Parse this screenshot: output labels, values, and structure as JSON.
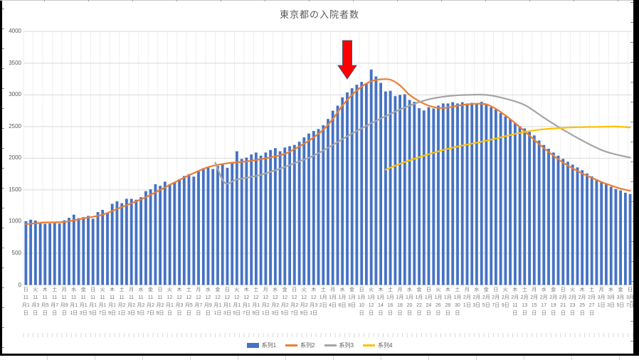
{
  "chart_data": {
    "type": "combo: daily bar series + 3 smoothed line series",
    "title": "東京都の入院者数",
    "ylabel": "",
    "xlabel": "",
    "ylim": [
      0,
      4000
    ],
    "y_ticks": [
      0,
      500,
      1000,
      1500,
      2000,
      2500,
      3000,
      3500,
      4000
    ],
    "x_range": "daily categories from 11月1日(日) to 3月7日(日), tick labels every 2 days",
    "grid": "horizontal every 500, light vertical every 2 categories",
    "legend_position": "bottom center",
    "x_tick_labels": [
      {
        "w": "日",
        "d": "11月1日"
      },
      {
        "w": "火",
        "d": "11月3日"
      },
      {
        "w": "木",
        "d": "11月5日"
      },
      {
        "w": "土",
        "d": "11月7日"
      },
      {
        "w": "月",
        "d": "11月9日"
      },
      {
        "w": "水",
        "d": "11月11日"
      },
      {
        "w": "金",
        "d": "11月13日"
      },
      {
        "w": "日",
        "d": "11月15日"
      },
      {
        "w": "火",
        "d": "11月17日"
      },
      {
        "w": "木",
        "d": "11月19日"
      },
      {
        "w": "土",
        "d": "11月21日"
      },
      {
        "w": "月",
        "d": "11月23日"
      },
      {
        "w": "水",
        "d": "11月25日"
      },
      {
        "w": "金",
        "d": "11月27日"
      },
      {
        "w": "日",
        "d": "11月29日"
      },
      {
        "w": "火",
        "d": "12月1日"
      },
      {
        "w": "木",
        "d": "12月3日"
      },
      {
        "w": "土",
        "d": "12月5日"
      },
      {
        "w": "月",
        "d": "12月7日"
      },
      {
        "w": "水",
        "d": "12月9日"
      },
      {
        "w": "金",
        "d": "12月11日"
      },
      {
        "w": "日",
        "d": "12月13日"
      },
      {
        "w": "火",
        "d": "12月15日"
      },
      {
        "w": "木",
        "d": "12月17日"
      },
      {
        "w": "土",
        "d": "12月19日"
      },
      {
        "w": "月",
        "d": "12月21日"
      },
      {
        "w": "水",
        "d": "12月23日"
      },
      {
        "w": "金",
        "d": "12月25日"
      },
      {
        "w": "日",
        "d": "12月27日"
      },
      {
        "w": "火",
        "d": "12月29日"
      },
      {
        "w": "木",
        "d": "12月31日"
      },
      {
        "w": "土",
        "d": "1月2日"
      },
      {
        "w": "月",
        "d": "1月4日"
      },
      {
        "w": "水",
        "d": "1月6日"
      },
      {
        "w": "金",
        "d": "1月8日"
      },
      {
        "w": "日",
        "d": "1月10日"
      },
      {
        "w": "火",
        "d": "1月12日"
      },
      {
        "w": "木",
        "d": "1月14日"
      },
      {
        "w": "土",
        "d": "1月16日"
      },
      {
        "w": "月",
        "d": "1月18日"
      },
      {
        "w": "水",
        "d": "1月20日"
      },
      {
        "w": "金",
        "d": "1月22日"
      },
      {
        "w": "日",
        "d": "1月24日"
      },
      {
        "w": "火",
        "d": "1月26日"
      },
      {
        "w": "木",
        "d": "1月28日"
      },
      {
        "w": "土",
        "d": "1月30日"
      },
      {
        "w": "月",
        "d": "2月1日"
      },
      {
        "w": "水",
        "d": "2月3日"
      },
      {
        "w": "金",
        "d": "2月5日"
      },
      {
        "w": "日",
        "d": "2月7日"
      },
      {
        "w": "火",
        "d": "2月9日"
      },
      {
        "w": "木",
        "d": "2月11日"
      },
      {
        "w": "土",
        "d": "2月13日"
      },
      {
        "w": "月",
        "d": "2月15日"
      },
      {
        "w": "水",
        "d": "2月17日"
      },
      {
        "w": "金",
        "d": "2月19日"
      },
      {
        "w": "日",
        "d": "2月21日"
      },
      {
        "w": "火",
        "d": "2月23日"
      },
      {
        "w": "木",
        "d": "2月25日"
      },
      {
        "w": "土",
        "d": "2月27日"
      },
      {
        "w": "月",
        "d": "3月1日"
      },
      {
        "w": "水",
        "d": "3月3日"
      },
      {
        "w": "金",
        "d": "3月5日"
      },
      {
        "w": "日",
        "d": "3月7日"
      }
    ],
    "series": [
      {
        "name": "系列1",
        "type": "bar",
        "color": "#4472C4",
        "note": "daily values (estimated from pixels), 11月1日-3月7日",
        "values": [
          1005,
          1030,
          1015,
          975,
          965,
          970,
          975,
          970,
          1020,
          1060,
          1110,
          1055,
          1070,
          1090,
          1045,
          1150,
          1185,
          1135,
          1280,
          1320,
          1290,
          1360,
          1360,
          1345,
          1385,
          1480,
          1510,
          1590,
          1565,
          1630,
          1590,
          1620,
          1670,
          1720,
          1750,
          1710,
          1790,
          1840,
          1860,
          1830,
          1880,
          1900,
          1850,
          1930,
          2110,
          1990,
          2010,
          2060,
          2090,
          2040,
          2090,
          2130,
          2160,
          2110,
          2170,
          2190,
          2210,
          2260,
          2330,
          2390,
          2430,
          2460,
          2520,
          2620,
          2750,
          2830,
          2960,
          3040,
          3105,
          3160,
          3205,
          3185,
          3400,
          3290,
          3190,
          3055,
          3065,
          2980,
          3000,
          3010,
          2920,
          2890,
          2790,
          2755,
          2805,
          2785,
          2830,
          2865,
          2865,
          2885,
          2865,
          2885,
          2865,
          2875,
          2860,
          2890,
          2860,
          2805,
          2770,
          2715,
          2660,
          2615,
          2560,
          2505,
          2470,
          2415,
          2360,
          2280,
          2210,
          2150,
          2090,
          2040,
          1990,
          1945,
          1900,
          1855,
          1810,
          1760,
          1715,
          1670,
          1630,
          1590,
          1550,
          1515,
          1490,
          1455,
          1435
        ]
      },
      {
        "name": "系列2",
        "type": "line",
        "color": "#ED7D31",
        "points": [
          [
            0,
            960
          ],
          [
            4,
            985
          ],
          [
            8,
            995
          ],
          [
            12,
            1050
          ],
          [
            16,
            1110
          ],
          [
            20,
            1230
          ],
          [
            24,
            1350
          ],
          [
            28,
            1500
          ],
          [
            30,
            1580
          ],
          [
            34,
            1730
          ],
          [
            38,
            1860
          ],
          [
            42,
            1920
          ],
          [
            46,
            1950
          ],
          [
            50,
            2000
          ],
          [
            54,
            2070
          ],
          [
            58,
            2230
          ],
          [
            60,
            2330
          ],
          [
            62,
            2450
          ],
          [
            64,
            2620
          ],
          [
            66,
            2830
          ],
          [
            68,
            3000
          ],
          [
            70,
            3130
          ],
          [
            72,
            3215
          ],
          [
            74,
            3245
          ],
          [
            76,
            3240
          ],
          [
            78,
            3150
          ],
          [
            80,
            3000
          ],
          [
            82,
            2900
          ],
          [
            84,
            2830
          ],
          [
            86,
            2795
          ],
          [
            88,
            2800
          ],
          [
            90,
            2830
          ],
          [
            92,
            2850
          ],
          [
            94,
            2860
          ],
          [
            96,
            2850
          ],
          [
            98,
            2780
          ],
          [
            100,
            2675
          ],
          [
            102,
            2555
          ],
          [
            104,
            2425
          ],
          [
            106,
            2290
          ],
          [
            108,
            2160
          ],
          [
            110,
            2040
          ],
          [
            112,
            1930
          ],
          [
            114,
            1840
          ],
          [
            116,
            1760
          ],
          [
            118,
            1690
          ],
          [
            120,
            1625
          ],
          [
            122,
            1570
          ],
          [
            124,
            1520
          ],
          [
            126,
            1485
          ]
        ]
      },
      {
        "name": "系列3",
        "type": "line",
        "color": "#A5A5A5",
        "points": [
          [
            39.5,
            1930
          ],
          [
            41.5,
            1610
          ],
          [
            44,
            1665
          ],
          [
            48,
            1720
          ],
          [
            52,
            1810
          ],
          [
            56,
            1920
          ],
          [
            60,
            2040
          ],
          [
            64,
            2210
          ],
          [
            68,
            2390
          ],
          [
            72,
            2550
          ],
          [
            76,
            2700
          ],
          [
            80,
            2830
          ],
          [
            84,
            2930
          ],
          [
            88,
            2980
          ],
          [
            92,
            3000
          ],
          [
            96,
            3000
          ],
          [
            100,
            2940
          ],
          [
            104,
            2840
          ],
          [
            108,
            2640
          ],
          [
            112,
            2450
          ],
          [
            116,
            2280
          ],
          [
            120,
            2130
          ],
          [
            123,
            2060
          ],
          [
            126,
            2010
          ]
        ]
      },
      {
        "name": "系列4",
        "type": "line",
        "color": "#FFC000",
        "points": [
          [
            75,
            1820
          ],
          [
            79,
            1940
          ],
          [
            83,
            2040
          ],
          [
            87,
            2130
          ],
          [
            91,
            2200
          ],
          [
            95,
            2260
          ],
          [
            99,
            2330
          ],
          [
            103,
            2400
          ],
          [
            107,
            2450
          ],
          [
            111,
            2475
          ],
          [
            115,
            2490
          ],
          [
            119,
            2495
          ],
          [
            123,
            2500
          ],
          [
            126,
            2485
          ]
        ]
      }
    ],
    "annotation": {
      "shape": "down-arrow",
      "color": "#FF0000",
      "outline": "#44546A",
      "day_index": 67,
      "points_at": "1月7日"
    }
  },
  "style": {
    "grid_h": "#D9D9D9",
    "grid_v": "#EFEFEF",
    "tick_dash": "#D9D9D9",
    "y_label_color": "#595959",
    "x_label_color": "#767676",
    "background": "#FFFFFF"
  }
}
